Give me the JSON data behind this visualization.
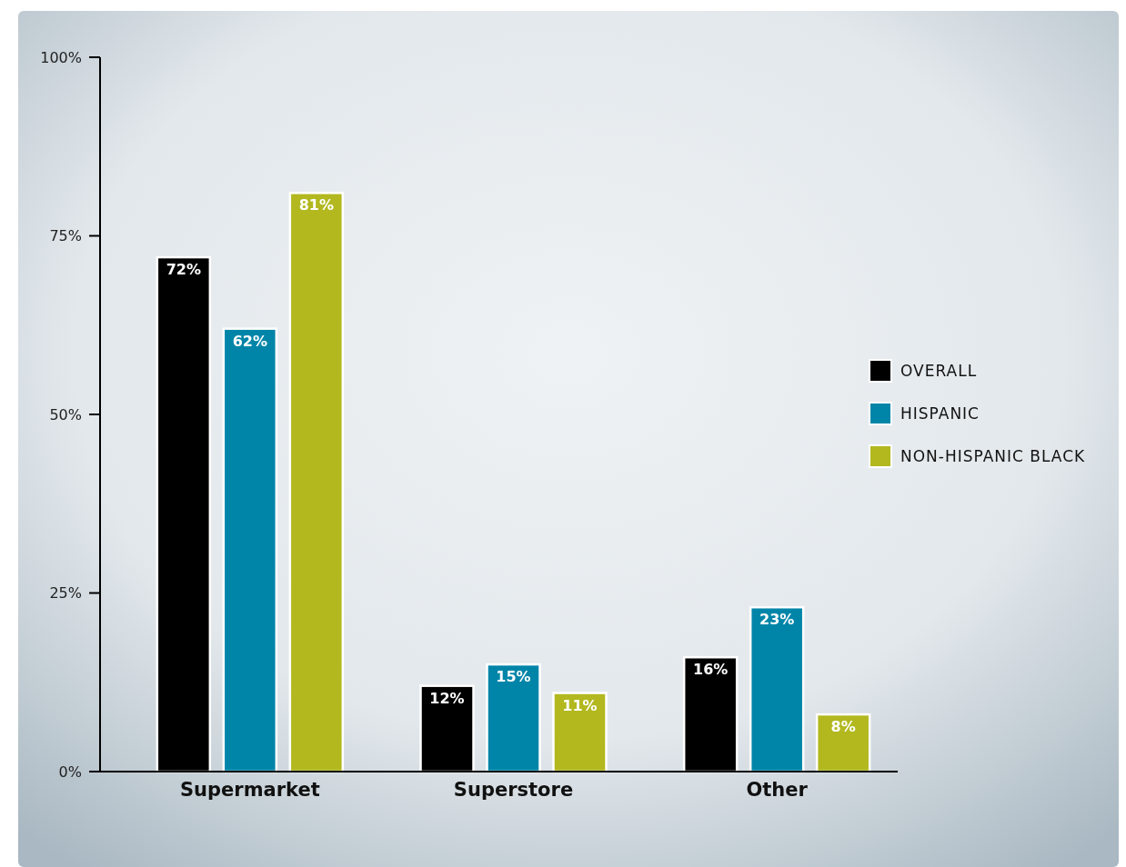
{
  "chart_data": {
    "type": "bar",
    "categories": [
      "Supermarket",
      "Superstore",
      "Other"
    ],
    "series": [
      {
        "name": "OVERALL",
        "color": "#000000",
        "values": [
          72,
          12,
          16
        ],
        "value_labels": [
          "72%",
          "12%",
          "16%"
        ]
      },
      {
        "name": "HISPANIC",
        "color": "#0085a8",
        "values": [
          62,
          15,
          23
        ],
        "value_labels": [
          "62%",
          "15%",
          "23%"
        ]
      },
      {
        "name": "NON-HISPANIC BLACK",
        "color": "#b2b81e",
        "values": [
          81,
          11,
          8
        ],
        "value_labels": [
          "81%",
          "11%",
          "8%"
        ]
      }
    ],
    "ylim": [
      0,
      100
    ],
    "yticks": [
      {
        "value": 0,
        "label": "0%"
      },
      {
        "value": 25,
        "label": "25%"
      },
      {
        "value": 50,
        "label": "50%"
      },
      {
        "value": 75,
        "label": "75%"
      },
      {
        "value": 100,
        "label": "100%"
      }
    ],
    "legend": "right",
    "grid": false
  }
}
